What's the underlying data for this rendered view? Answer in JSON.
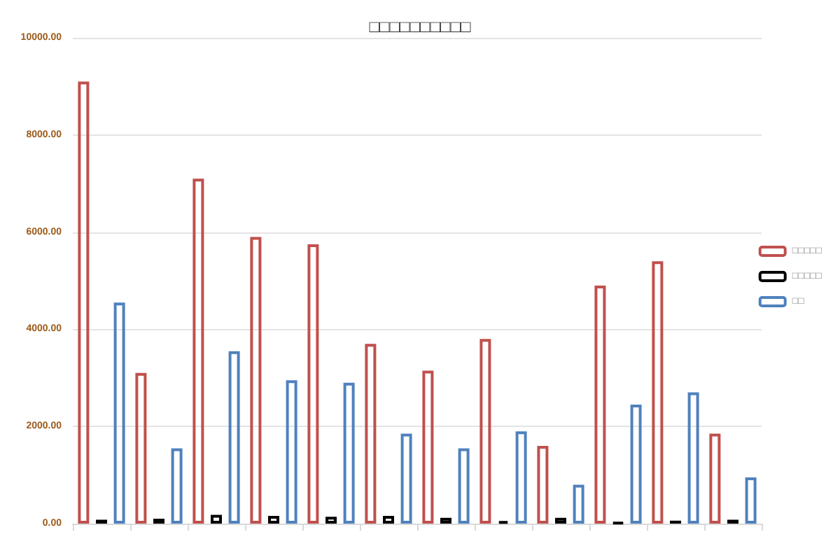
{
  "chart_data": {
    "type": "bar",
    "title": "□□□□□□□□□□",
    "categories": [
      null,
      null,
      null,
      null,
      null,
      null,
      null,
      null,
      null,
      null,
      null,
      null
    ],
    "series": [
      {
        "name": "□□□□□",
        "color": "#c0504d",
        "values": [
          9100,
          3100,
          7100,
          5900,
          5750,
          3700,
          3150,
          3800,
          1600,
          4900,
          5400,
          1850
        ]
      },
      {
        "name": "□□□□□",
        "color": "#000000",
        "values": [
          80,
          100,
          180,
          160,
          140,
          160,
          120,
          50,
          120,
          20,
          60,
          80
        ]
      },
      {
        "name": "□□",
        "color": "#4f81bd",
        "values": [
          4550,
          1550,
          3550,
          2950,
          2900,
          1850,
          1550,
          1900,
          800,
          2450,
          2700,
          950
        ]
      }
    ],
    "ylim": [
      0,
      10000
    ],
    "yticks": [
      {
        "value": 0,
        "label": "0.00"
      },
      {
        "value": 2000,
        "label": "2000.00"
      },
      {
        "value": 4000,
        "label": "4000.00"
      },
      {
        "value": 6000,
        "label": "6000.00"
      },
      {
        "value": 8000,
        "label": "8000.00"
      },
      {
        "value": 10000,
        "label": "10000.00"
      }
    ],
    "grid": "y",
    "legend": "right"
  }
}
